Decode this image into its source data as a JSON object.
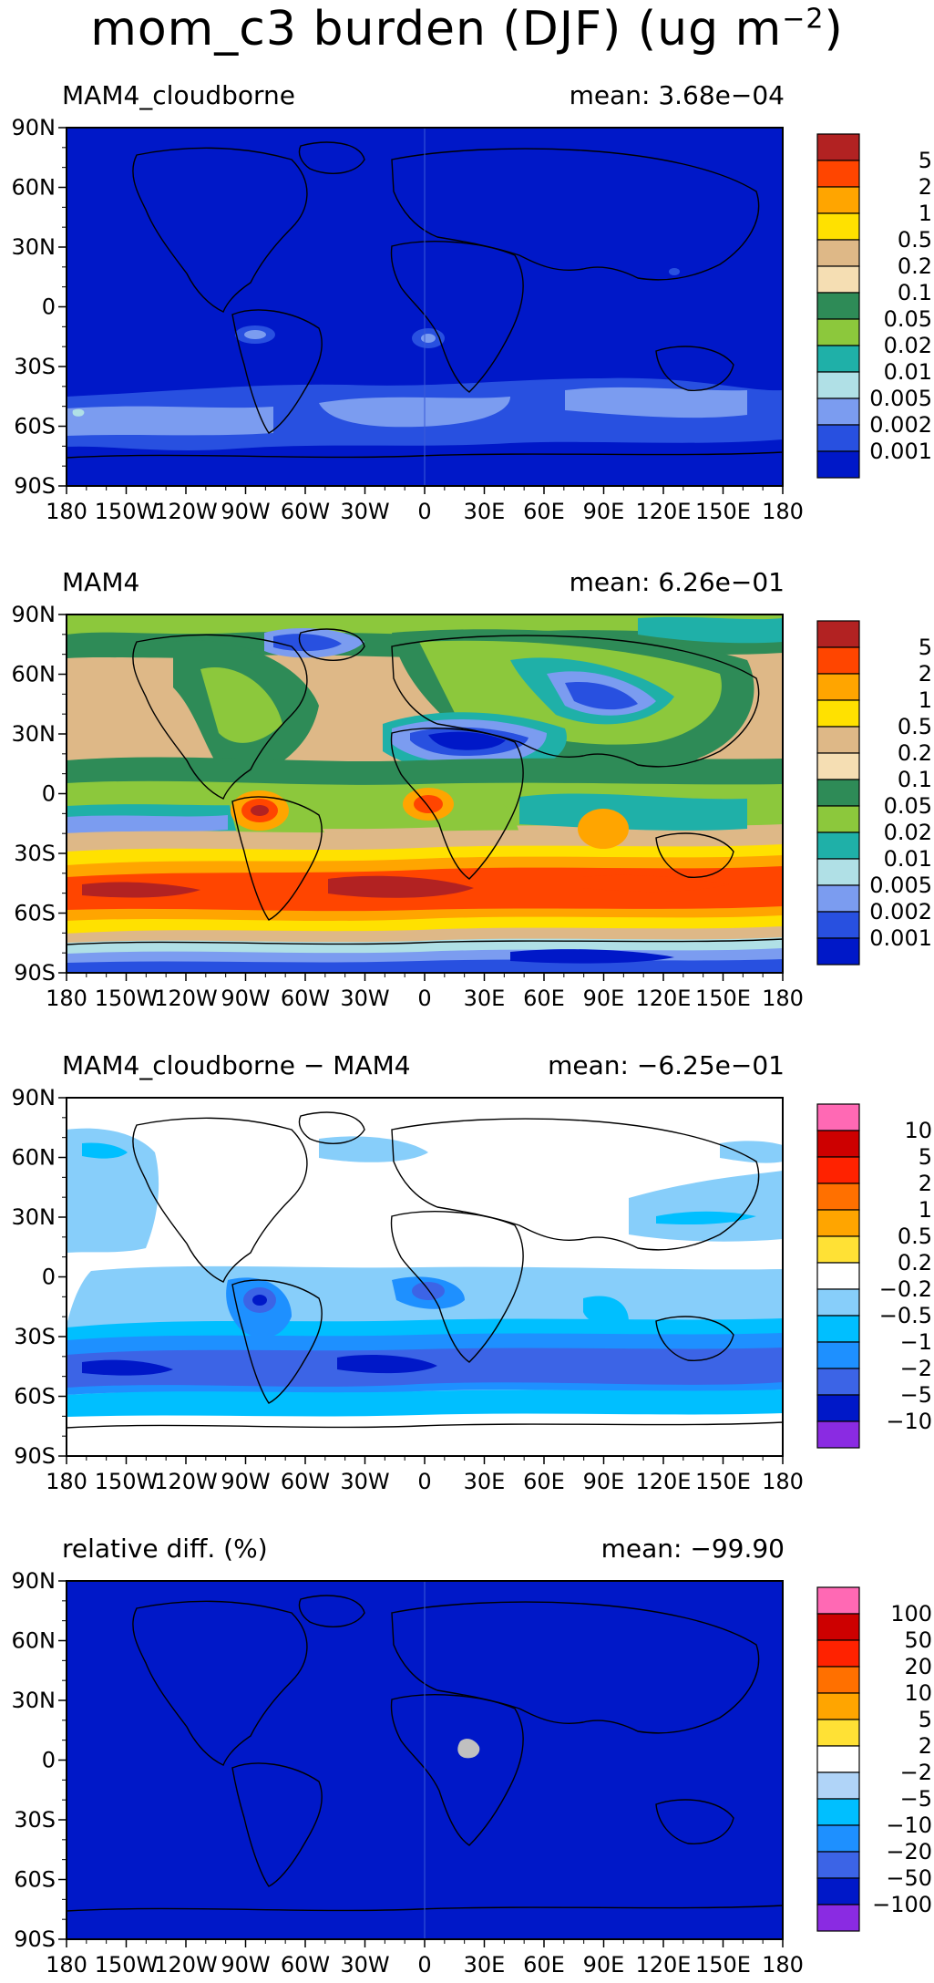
{
  "title": {
    "text": "mom_c3 burden (DJF) (ug m",
    "exp": "−2",
    "close": ")"
  },
  "lon_ticks": [
    "180",
    "150W",
    "120W",
    "90W",
    "60W",
    "30W",
    "0",
    "30E",
    "60E",
    "90E",
    "120E",
    "150E",
    "180"
  ],
  "lat_ticks": [
    "90N",
    "60N",
    "30N",
    "0",
    "30S",
    "60S",
    "90S"
  ],
  "panels": [
    {
      "label": "MAM4_cloudborne",
      "mean": "mean: 3.68e−04",
      "background": "#0018c8",
      "colorbar": {
        "colors": [
          "#0018c8",
          "#2850e0",
          "#7b9cf0",
          "#b0e0e6",
          "#1fb0a8",
          "#8cc83c",
          "#2e8b57",
          "#f5deb3",
          "#deb887",
          "#ffe100",
          "#ffa500",
          "#ff4500",
          "#b22222"
        ],
        "labels": [
          "0.001",
          "0.002",
          "0.005",
          "0.01",
          "0.02",
          "0.05",
          "0.1",
          "0.2",
          "0.5",
          "1",
          "2",
          "5"
        ]
      }
    },
    {
      "label": "MAM4",
      "mean": "mean: 6.26e−01",
      "background": "#deb887",
      "colorbar": {
        "colors": [
          "#0018c8",
          "#2850e0",
          "#7b9cf0",
          "#b0e0e6",
          "#1fb0a8",
          "#8cc83c",
          "#2e8b57",
          "#f5deb3",
          "#deb887",
          "#ffe100",
          "#ffa500",
          "#ff4500",
          "#b22222"
        ],
        "labels": [
          "0.001",
          "0.002",
          "0.005",
          "0.01",
          "0.02",
          "0.05",
          "0.1",
          "0.2",
          "0.5",
          "1",
          "2",
          "5"
        ]
      }
    },
    {
      "label": "MAM4_cloudborne − MAM4",
      "mean": "mean: −6.25e−01",
      "background": "#ffffff",
      "colorbar": {
        "colors": [
          "#8a2be2",
          "#0018c8",
          "#3c64e6",
          "#1e90ff",
          "#00bfff",
          "#87cefa",
          "#ffffff",
          "#ffe135",
          "#ffa500",
          "#ff7000",
          "#ff2200",
          "#cd0000",
          "#ff69b4"
        ],
        "labels": [
          "−10",
          "−5",
          "−2",
          "−1",
          "−0.5",
          "−0.2",
          "0.2",
          "0.5",
          "1",
          "2",
          "5",
          "10"
        ]
      }
    },
    {
      "label": "relative diff. (%)",
      "mean": "mean: −99.90",
      "background": "#0018c8",
      "colorbar": {
        "colors": [
          "#8a2be2",
          "#0018c8",
          "#3c64e6",
          "#1e90ff",
          "#00bfff",
          "#b0d4f8",
          "#ffffff",
          "#ffe135",
          "#ffa500",
          "#ff7000",
          "#ff2200",
          "#cd0000",
          "#ff69b4"
        ],
        "labels": [
          "−100",
          "−50",
          "−20",
          "−10",
          "−5",
          "−2",
          "2",
          "5",
          "10",
          "20",
          "50",
          "100"
        ]
      }
    }
  ]
}
